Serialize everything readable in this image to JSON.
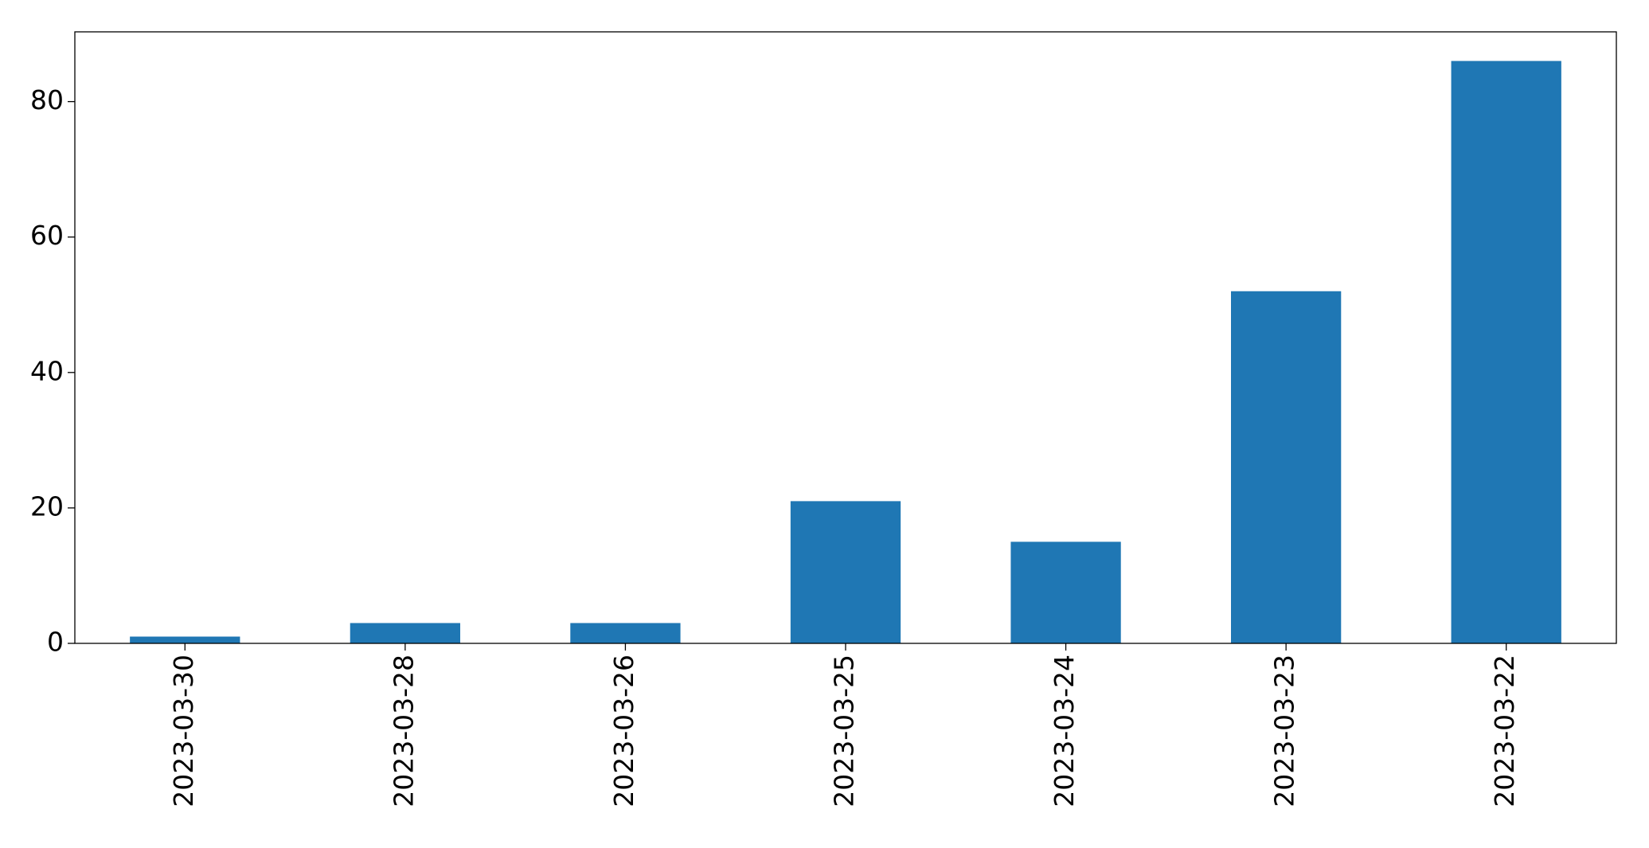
{
  "chart_data": {
    "type": "bar",
    "categories": [
      "2023-03-30",
      "2023-03-28",
      "2023-03-26",
      "2023-03-25",
      "2023-03-24",
      "2023-03-23",
      "2023-03-22"
    ],
    "values": [
      1,
      3,
      3,
      21,
      15,
      52,
      86
    ],
    "color": "#1f77b4",
    "ylim": [
      0,
      90.3
    ],
    "yticks": [
      0,
      20,
      40,
      60,
      80
    ],
    "grid": false
  }
}
